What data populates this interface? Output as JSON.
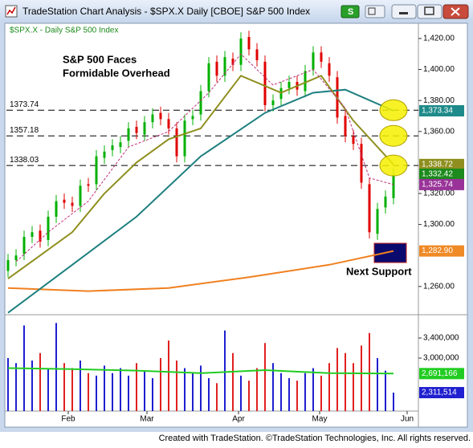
{
  "window": {
    "title": "TradeStation Chart Analysis - $SPX.X Daily [CBOE] S&P 500 Index",
    "symbol_button": "S"
  },
  "chart_data": [
    {
      "type": "candlestick",
      "legend": "$SPX.X - Daily  S&P 500 Index",
      "annotations": [
        "S&P 500 Faces",
        "Formidable Overhead",
        "Next Support"
      ],
      "x": [
        0,
        2,
        4,
        6,
        8,
        10,
        12,
        14,
        16,
        18,
        20,
        22,
        24,
        26,
        28,
        30,
        32,
        34,
        36,
        38,
        40,
        42,
        44,
        46,
        48,
        50,
        52,
        54,
        56,
        58,
        60,
        62,
        64,
        66,
        68,
        70,
        72,
        74,
        76,
        78,
        80,
        82,
        84,
        86,
        88,
        90,
        92,
        94,
        96
      ],
      "open": [
        1270,
        1277,
        1281,
        1292,
        1296,
        1290,
        1305,
        1316,
        1314,
        1312,
        1326,
        1326,
        1343,
        1348,
        1350,
        1354,
        1363,
        1358,
        1366,
        1372,
        1368,
        1362,
        1344,
        1368,
        1371,
        1386,
        1405,
        1396,
        1407,
        1403,
        1421,
        1413,
        1405,
        1377,
        1381,
        1388,
        1392,
        1386,
        1400,
        1411,
        1404,
        1395,
        1370,
        1357,
        1352,
        1326,
        1294,
        1311,
        1317
      ],
      "high": [
        1281,
        1284,
        1296,
        1299,
        1300,
        1309,
        1319,
        1320,
        1318,
        1329,
        1330,
        1348,
        1351,
        1355,
        1357,
        1366,
        1367,
        1370,
        1375,
        1376,
        1372,
        1366,
        1371,
        1374,
        1390,
        1408,
        1409,
        1412,
        1411,
        1424,
        1425,
        1417,
        1409,
        1384,
        1392,
        1396,
        1396,
        1403,
        1415,
        1415,
        1408,
        1399,
        1374,
        1361,
        1356,
        1330,
        1314,
        1322,
        1336
      ],
      "low": [
        1266,
        1273,
        1277,
        1288,
        1285,
        1286,
        1301,
        1310,
        1308,
        1308,
        1321,
        1322,
        1339,
        1344,
        1346,
        1350,
        1355,
        1354,
        1362,
        1364,
        1358,
        1340,
        1340,
        1364,
        1367,
        1382,
        1392,
        1392,
        1399,
        1399,
        1409,
        1402,
        1373,
        1373,
        1377,
        1384,
        1383,
        1382,
        1396,
        1401,
        1392,
        1365,
        1353,
        1348,
        1323,
        1291,
        1290,
        1307,
        1313
      ],
      "close": [
        1277,
        1280,
        1292,
        1295,
        1289,
        1305,
        1315,
        1314,
        1312,
        1325,
        1325,
        1344,
        1347,
        1351,
        1353,
        1362,
        1359,
        1366,
        1371,
        1368,
        1362,
        1344,
        1367,
        1370,
        1386,
        1404,
        1396,
        1408,
        1403,
        1420,
        1413,
        1406,
        1377,
        1380,
        1388,
        1392,
        1387,
        1399,
        1411,
        1405,
        1396,
        1369,
        1357,
        1352,
        1327,
        1295,
        1310,
        1318,
        1332
      ],
      "up_color": "#00b000",
      "down_color": "#e00000",
      "lines": [
        {
          "color": "#f08020",
          "dash": false,
          "x": [
            0,
            20,
            40,
            60,
            80,
            96
          ],
          "values": [
            1259,
            1257,
            1259,
            1266,
            1274,
            1282.9
          ]
        },
        {
          "color": "#1f7f7f",
          "dash": false,
          "x": [
            0,
            16,
            32,
            48,
            64,
            76,
            84,
            96
          ],
          "values": [
            1243,
            1274,
            1305,
            1344,
            1372,
            1385,
            1387,
            1373.34
          ]
        },
        {
          "color": "#8f8f20",
          "dash": false,
          "x": [
            0,
            8,
            16,
            24,
            32,
            40,
            48,
            58,
            68,
            78,
            86,
            96
          ],
          "values": [
            1265,
            1280,
            1295,
            1320,
            1340,
            1355,
            1362,
            1396,
            1385,
            1396,
            1367,
            1338.72
          ]
        },
        {
          "color": "#c0307a",
          "dash": true,
          "x": [
            2,
            10,
            20,
            30,
            40,
            50,
            58,
            66,
            76,
            84,
            90,
            96
          ],
          "values": [
            1276,
            1295,
            1315,
            1350,
            1360,
            1385,
            1410,
            1390,
            1400,
            1375,
            1330,
            1325.74
          ]
        }
      ],
      "levels": [
        1373.74,
        1357.18,
        1338.03
      ],
      "price_labels": [
        {
          "value": 1373.34,
          "label": "1,373.34",
          "color": "#1f8a8a"
        },
        {
          "value": 1338.72,
          "label": "1,338.72",
          "color": "#8f8f20"
        },
        {
          "value": 1332.42,
          "label": "1,332.42",
          "color": "#1c8a1c"
        },
        {
          "value": 1325.74,
          "label": "1,325.74",
          "color": "#993399"
        },
        {
          "value": 1282.9,
          "label": "1,282.90",
          "color": "#ef8a26"
        }
      ],
      "xlim": [
        -0.4,
        102.2
      ],
      "xticks": [
        {
          "value": 15,
          "label": "Feb"
        },
        {
          "value": 34.6,
          "label": "Mar"
        },
        {
          "value": 57.4,
          "label": "Apr"
        },
        {
          "value": 77.6,
          "label": "May"
        },
        {
          "value": 99.4,
          "label": "Jun"
        }
      ],
      "ylim": [
        1242.8,
        1429.3
      ],
      "yticks": [
        {
          "value": 1420,
          "label": "1,420.00"
        },
        {
          "value": 1400,
          "label": "1,400.00"
        },
        {
          "value": 1380,
          "label": "1,380.00"
        },
        {
          "value": 1360,
          "label": "1,360.00"
        },
        {
          "value": 1320,
          "label": "1,320.00"
        },
        {
          "value": 1300,
          "label": "1,300.00"
        },
        {
          "value": 1260,
          "label": "1,260.00"
        }
      ]
    },
    {
      "type": "bar",
      "x": [
        0,
        2,
        4,
        6,
        8,
        10,
        12,
        14,
        16,
        18,
        20,
        22,
        24,
        26,
        28,
        30,
        32,
        34,
        36,
        38,
        40,
        42,
        44,
        46,
        48,
        50,
        52,
        54,
        56,
        58,
        60,
        62,
        64,
        66,
        68,
        70,
        72,
        74,
        76,
        78,
        80,
        82,
        84,
        86,
        88,
        90,
        92,
        94,
        96
      ],
      "values": [
        3000000,
        2900000,
        3650000,
        2950000,
        3100000,
        2800000,
        3700000,
        2900000,
        2800000,
        2950000,
        2700000,
        2650000,
        2850000,
        2700000,
        2800000,
        2650000,
        2900000,
        2750000,
        2600000,
        3000000,
        3350000,
        2950000,
        2800000,
        2700000,
        2850000,
        2600000,
        2500000,
        3550000,
        3100000,
        2650000,
        2550000,
        2800000,
        3300000,
        2900000,
        2700000,
        2600000,
        2550000,
        2700000,
        2800000,
        2650000,
        2900000,
        3200000,
        3100000,
        2900000,
        3250000,
        3500000,
        3000000,
        2750000,
        2311514
      ],
      "up_color": "#1f1fd0",
      "down_color": "#e02020",
      "lines": [
        {
          "color": "#22cc22",
          "dash": false,
          "x": [
            0,
            16,
            32,
            48,
            64,
            80,
            96
          ],
          "values": [
            2800000,
            2780000,
            2750000,
            2700000,
            2760000,
            2700000,
            2691166
          ]
        }
      ],
      "price_labels": [
        {
          "value": 2691166,
          "label": "2,691,166",
          "color": "#22cc22"
        },
        {
          "value": 2311514,
          "label": "2,311,514",
          "color": "#2020d0"
        }
      ],
      "xlim": [
        -0.4,
        102.2
      ],
      "ylim": [
        1944000,
        3816000
      ],
      "yticks": [
        {
          "value": 3400000,
          "label": "3,400,000"
        },
        {
          "value": 3000000,
          "label": "3,000,000"
        }
      ]
    }
  ],
  "footer": "Created with TradeStation. ©TradeStation Technologies, Inc. All rights reserved."
}
